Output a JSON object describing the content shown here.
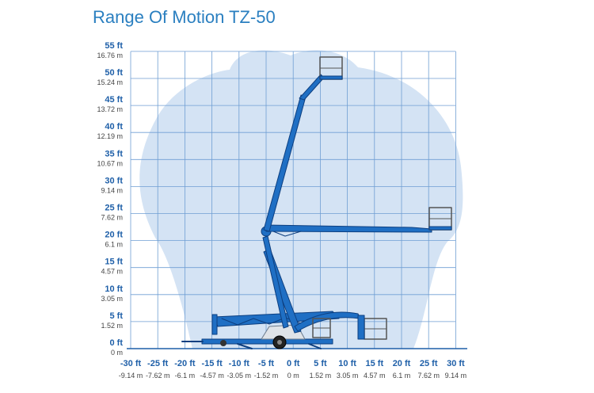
{
  "title": "Range Of Motion TZ-50",
  "y_axis": {
    "labels": [
      {
        "ft": "0 ft",
        "m": "0 m"
      },
      {
        "ft": "5 ft",
        "m": "1.52 m"
      },
      {
        "ft": "10 ft",
        "m": "3.05 m"
      },
      {
        "ft": "15 ft",
        "m": "4.57 m"
      },
      {
        "ft": "20 ft",
        "m": "6.1 m"
      },
      {
        "ft": "25 ft",
        "m": "7.62 m"
      },
      {
        "ft": "30 ft",
        "m": "9.14 m"
      },
      {
        "ft": "35 ft",
        "m": "10.67 m"
      },
      {
        "ft": "40 ft",
        "m": "12.19 m"
      },
      {
        "ft": "45 ft",
        "m": "13.72 m"
      },
      {
        "ft": "50 ft",
        "m": "15.24 m"
      },
      {
        "ft": "55 ft",
        "m": "16.76 m"
      }
    ]
  },
  "x_axis": {
    "labels": [
      {
        "ft": "-30 ft",
        "m": "-9.14 m"
      },
      {
        "ft": "-25 ft",
        "m": "-7.62 m"
      },
      {
        "ft": "-20 ft",
        "m": "-6.1 m"
      },
      {
        "ft": "-15 ft",
        "m": "-4.57 m"
      },
      {
        "ft": "-10 ft",
        "m": "-3.05 m"
      },
      {
        "ft": "-5 ft",
        "m": "-1.52 m"
      },
      {
        "ft": "0 ft",
        "m": "0 m"
      },
      {
        "ft": "5 ft",
        "m": "1.52 m"
      },
      {
        "ft": "10 ft",
        "m": "3.05 m"
      },
      {
        "ft": "15 ft",
        "m": "4.57 m"
      },
      {
        "ft": "20 ft",
        "m": "6.1 m"
      },
      {
        "ft": "25 ft",
        "m": "7.62 m"
      },
      {
        "ft": "30 ft",
        "m": "9.14 m"
      }
    ]
  },
  "colors": {
    "title": "#2a7fc0",
    "grid": "#6f9ed3",
    "envelope": "#d4e3f4",
    "boom": "#1f6fc4",
    "boom_dark": "#0d3f80",
    "label": "#1e5fa8"
  }
}
